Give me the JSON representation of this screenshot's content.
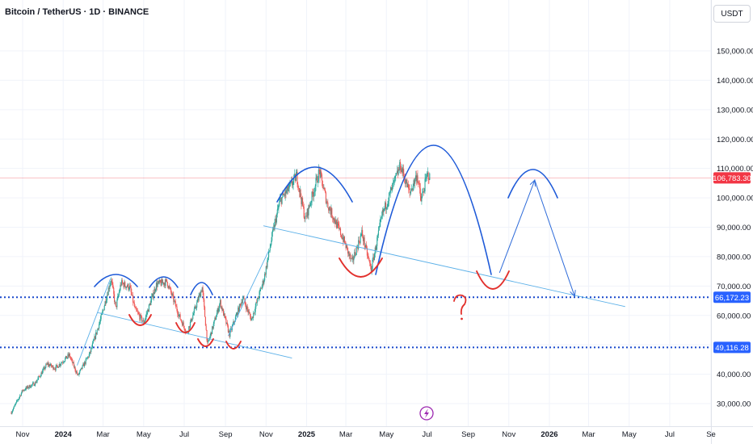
{
  "header": {
    "symbol": "Bitcoin / TetherUS",
    "interval": "1D",
    "exchange": "BINANCE",
    "title": "Bitcoin / TetherUS · 1D · BINANCE",
    "currency": "USDT"
  },
  "chart_data": {
    "type": "candlestick",
    "title": "Bitcoin / TetherUS · 1D · BINANCE",
    "ylabel": "USDT",
    "ylim": [
      23000,
      158000
    ],
    "yticks": [
      "150,000.00",
      "140,000.00",
      "130,000.00",
      "120,000.00",
      "110,000.00",
      "100,000.00",
      "90,000.00",
      "80,000.00",
      "70,000.00",
      "60,000.00",
      "50,000.00",
      "40,000.00",
      "30,000.00"
    ],
    "ytick_values": [
      150000,
      140000,
      130000,
      120000,
      110000,
      100000,
      90000,
      80000,
      70000,
      60000,
      50000,
      40000,
      30000
    ],
    "xticks": [
      "Nov",
      "2024",
      "Mar",
      "May",
      "Jul",
      "Sep",
      "Nov",
      "2025",
      "Mar",
      "May",
      "Jul",
      "Sep",
      "Nov",
      "2026",
      "Mar",
      "May",
      "Jul",
      "Se"
    ],
    "xtick_dates": [
      "2023-11-01",
      "2024-01-01",
      "2024-03-01",
      "2024-05-01",
      "2024-07-01",
      "2024-09-01",
      "2024-11-01",
      "2025-01-01",
      "2025-03-01",
      "2025-05-01",
      "2025-07-01",
      "2025-09-01",
      "2025-11-01",
      "2026-01-01",
      "2026-03-01",
      "2026-05-01",
      "2026-07-01",
      "2026-09-01"
    ],
    "xtick_bold": [
      false,
      true,
      false,
      false,
      false,
      false,
      false,
      true,
      false,
      false,
      false,
      false,
      false,
      true,
      false,
      false,
      false,
      false
    ],
    "price_path": [
      [
        "2023-10-15",
        27000
      ],
      [
        "2023-11-01",
        34500
      ],
      [
        "2023-11-20",
        37000
      ],
      [
        "2023-12-08",
        43500
      ],
      [
        "2023-12-20",
        42000
      ],
      [
        "2024-01-10",
        46500
      ],
      [
        "2024-01-23",
        39500
      ],
      [
        "2024-02-10",
        47000
      ],
      [
        "2024-02-28",
        60000
      ],
      [
        "2024-03-13",
        72500
      ],
      [
        "2024-03-20",
        62500
      ],
      [
        "2024-03-28",
        71000
      ],
      [
        "2024-04-10",
        69500
      ],
      [
        "2024-04-18",
        62000
      ],
      [
        "2024-05-01",
        57500
      ],
      [
        "2024-05-20",
        70500
      ],
      [
        "2024-06-05",
        71500
      ],
      [
        "2024-06-24",
        59500
      ],
      [
        "2024-07-05",
        54000
      ],
      [
        "2024-07-28",
        69500
      ],
      [
        "2024-08-05",
        50000
      ],
      [
        "2024-08-24",
        64500
      ],
      [
        "2024-09-07",
        53500
      ],
      [
        "2024-09-27",
        66000
      ],
      [
        "2024-10-10",
        58500
      ],
      [
        "2024-10-29",
        72500
      ],
      [
        "2024-11-11",
        88000
      ],
      [
        "2024-11-22",
        99000
      ],
      [
        "2024-12-05",
        103000
      ],
      [
        "2024-12-17",
        107500
      ],
      [
        "2024-12-30",
        92500
      ],
      [
        "2025-01-20",
        109000
      ],
      [
        "2025-02-01",
        98000
      ],
      [
        "2025-02-25",
        86000
      ],
      [
        "2025-03-10",
        78000
      ],
      [
        "2025-03-25",
        88000
      ],
      [
        "2025-04-08",
        75500
      ],
      [
        "2025-04-25",
        94500
      ],
      [
        "2025-05-10",
        103500
      ],
      [
        "2025-05-22",
        111000
      ],
      [
        "2025-06-05",
        101500
      ],
      [
        "2025-06-16",
        108000
      ],
      [
        "2025-06-22",
        99000
      ],
      [
        "2025-07-01",
        107500
      ],
      [
        "2025-07-03",
        108000
      ],
      [
        "2025-07-05",
        106783
      ]
    ],
    "price_lines": [
      {
        "label": "106,783.30",
        "value": 106783.3,
        "color": "#f23645",
        "style": "solid-thin"
      },
      {
        "label": "66,172.23",
        "value": 66172.23,
        "color": "#1848cc",
        "style": "dotted"
      },
      {
        "label": "49,116.28",
        "value": 49116.28,
        "color": "#1848cc",
        "style": "dotted"
      }
    ],
    "trendlines": [
      {
        "color": "#5bb0e8",
        "from": [
          "2024-02-21",
          61000
        ],
        "to": [
          "2024-12-10",
          45500
        ]
      },
      {
        "color": "#5bb0e8",
        "from": [
          "2024-10-28",
          90500
        ],
        "to": [
          "2026-04-25",
          63000
        ]
      },
      {
        "color": "#5bb0e8",
        "from": [
          "2024-01-22",
          43000
        ],
        "to": [
          "2024-03-12",
          72500
        ]
      },
      {
        "color": "#5bb0e8",
        "from": [
          "2024-09-05",
          53000
        ],
        "to": [
          "2024-11-05",
          82000
        ]
      }
    ],
    "projection": {
      "color": "#2e6bd9",
      "path": [
        [
          "2025-10-18",
          74500
        ],
        [
          "2025-12-10",
          106000
        ],
        [
          "2026-02-08",
          66500
        ]
      ]
    },
    "markings": {
      "blue_arcs": 6,
      "red_arcs": 8,
      "question_mark": "?"
    },
    "grid": true,
    "legend": "none",
    "colors": {
      "up": "#26a69a",
      "down": "#ef5350",
      "grid": "#f0f3fa",
      "axis_text": "#131722"
    }
  }
}
